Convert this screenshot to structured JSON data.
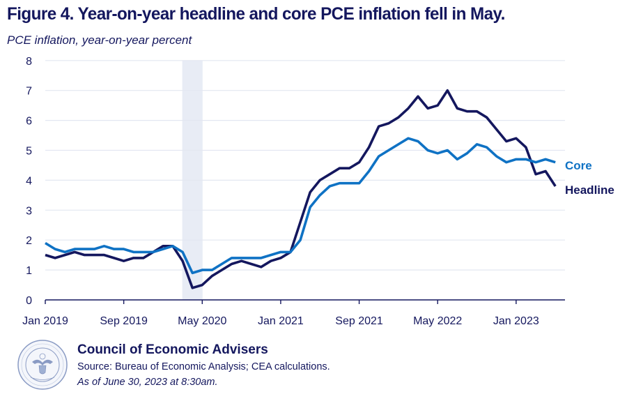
{
  "chart_data": {
    "type": "line",
    "title": "Figure 4. Year-on-year headline and core PCE inflation fell in May.",
    "subtitle": "PCE inflation, year-on-year percent",
    "xlabel": "",
    "ylabel": "PCE inflation, year-on-year percent",
    "ylim": [
      0,
      8
    ],
    "yticks": [
      "0",
      "1",
      "2",
      "3",
      "4",
      "5",
      "6",
      "7",
      "8"
    ],
    "x_start": "Jan 2019",
    "x_end": "May 2023",
    "x_frequency": "monthly",
    "xtick_labels": [
      {
        "label": "Jan 2019",
        "index": 0
      },
      {
        "label": "Sep 2019",
        "index": 8
      },
      {
        "label": "May 2020",
        "index": 16
      },
      {
        "label": "Jan 2021",
        "index": 24
      },
      {
        "label": "Sep 2021",
        "index": 32
      },
      {
        "label": "May 2022",
        "index": 40
      },
      {
        "label": "Jan 2023",
        "index": 48
      }
    ],
    "grid": true,
    "recession_shading": {
      "start_index": 14,
      "end_index": 16,
      "color": "#e8ecf5"
    },
    "series": [
      {
        "name": "Headline",
        "label": "Headline",
        "color": "#14175e",
        "values": [
          1.5,
          1.4,
          1.5,
          1.6,
          1.5,
          1.5,
          1.5,
          1.4,
          1.3,
          1.4,
          1.4,
          1.6,
          1.8,
          1.8,
          1.3,
          0.4,
          0.5,
          0.8,
          1.0,
          1.2,
          1.3,
          1.2,
          1.1,
          1.3,
          1.4,
          1.6,
          2.6,
          3.6,
          4.0,
          4.2,
          4.4,
          4.4,
          4.6,
          5.1,
          5.8,
          5.9,
          6.1,
          6.4,
          6.8,
          6.4,
          6.5,
          7.0,
          6.4,
          6.3,
          6.3,
          6.1,
          5.7,
          5.3,
          5.4,
          5.1,
          4.2,
          4.3,
          3.8
        ]
      },
      {
        "name": "Core",
        "label": "Core",
        "color": "#0f72c4",
        "values": [
          1.9,
          1.7,
          1.6,
          1.7,
          1.7,
          1.7,
          1.8,
          1.7,
          1.7,
          1.6,
          1.6,
          1.6,
          1.7,
          1.8,
          1.6,
          0.9,
          1.0,
          1.0,
          1.2,
          1.4,
          1.4,
          1.4,
          1.4,
          1.5,
          1.6,
          1.6,
          2.0,
          3.1,
          3.5,
          3.8,
          3.9,
          3.9,
          3.9,
          4.3,
          4.8,
          5.0,
          5.2,
          5.4,
          5.3,
          5.0,
          4.9,
          5.0,
          4.7,
          4.9,
          5.2,
          5.1,
          4.8,
          4.6,
          4.7,
          4.7,
          4.6,
          4.7,
          4.6
        ]
      }
    ],
    "legend": "direct-labels-right"
  },
  "footer": {
    "organization": "Council of Economic Advisers",
    "source": "Source: Bureau of Economic Analysis; CEA calculations.",
    "as_of": "As of June 30, 2023 at 8:30am.",
    "seal_icon": "presidential-seal-icon",
    "seal_text": "EXECUTIVE OFFICE OF THE PRESIDENT OF THE UNITED STATES"
  }
}
